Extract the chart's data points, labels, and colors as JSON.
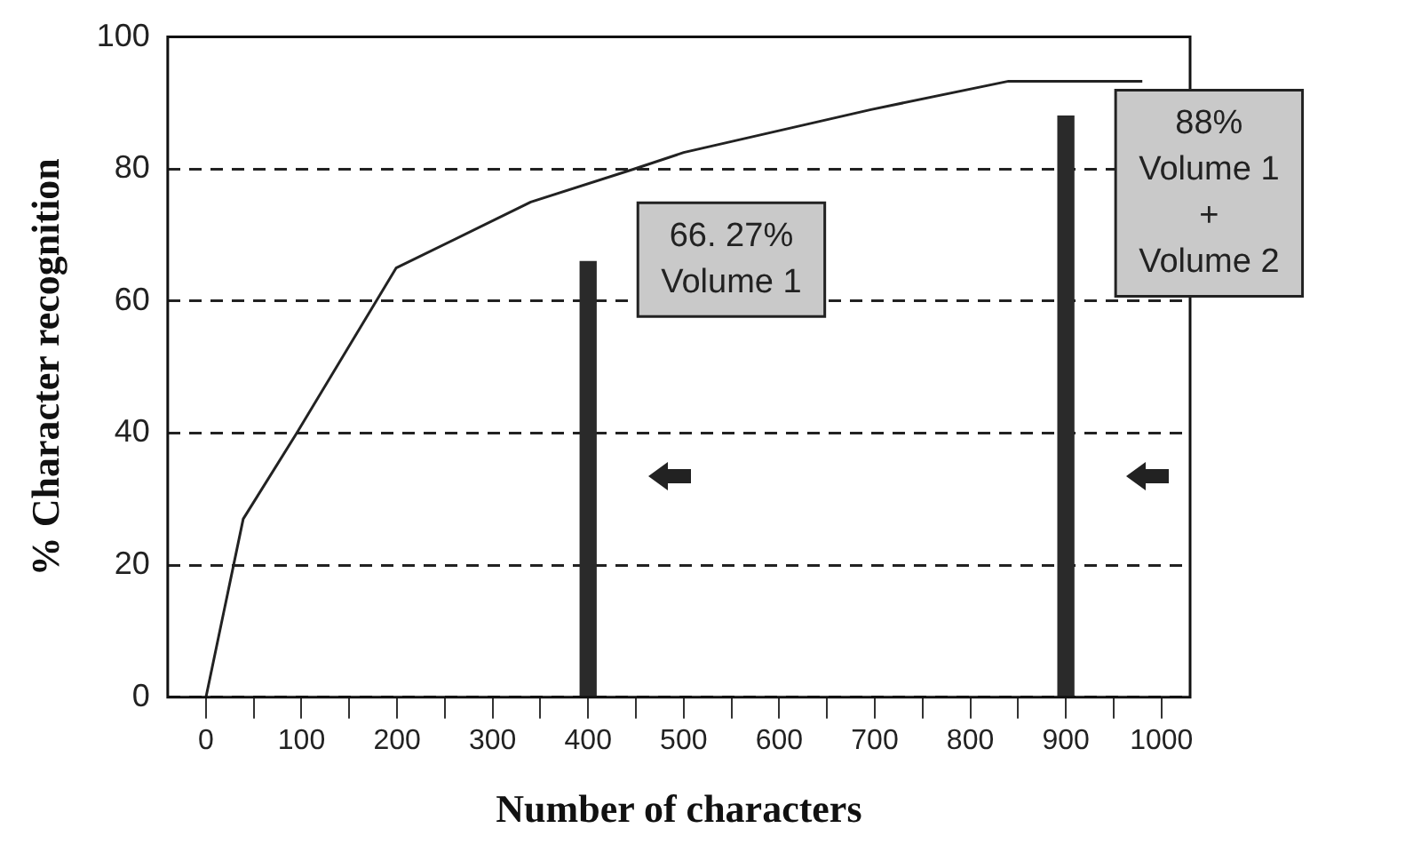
{
  "chart_data": {
    "type": "line",
    "xlabel": "Number of characters",
    "ylabel": "% Character recognition",
    "xlim": [
      -40,
      1030
    ],
    "ylim": [
      0,
      100
    ],
    "xticks": [
      0,
      {
        "value": 50,
        "label": null
      },
      100,
      {
        "value": 150,
        "label": null
      },
      200,
      {
        "value": 250,
        "label": null
      },
      300,
      {
        "value": 350,
        "label": null
      },
      400,
      {
        "value": 450,
        "label": null
      },
      500,
      {
        "value": 550,
        "label": null
      },
      600,
      {
        "value": 650,
        "label": null
      },
      700,
      {
        "value": 750,
        "label": null
      },
      800,
      {
        "value": 850,
        "label": null
      },
      900,
      {
        "value": 950,
        "label": null
      },
      1000
    ],
    "yticks": [
      0,
      20,
      40,
      60,
      80,
      100
    ],
    "grid": "y",
    "marker": "none",
    "legend": false,
    "series": [
      {
        "color": "#222222",
        "x": [
          0,
          39,
          95,
          199,
          340,
          448,
          500,
          696,
          840,
          980
        ],
        "values": [
          0,
          27,
          40,
          65,
          75,
          80,
          82.5,
          89,
          93.3,
          93.3
        ]
      },
      {
        "type": "bar",
        "color": "#2a2a2a",
        "x": [
          400,
          900
        ],
        "values": [
          66,
          88
        ]
      }
    ],
    "annotations": [
      {
        "text": "66. 27%\nVolume 1",
        "x": 400,
        "y": 66.27
      },
      {
        "text": "88%\nVolume 1\n+\nVolume 2",
        "x": 900,
        "y": 88
      }
    ]
  }
}
